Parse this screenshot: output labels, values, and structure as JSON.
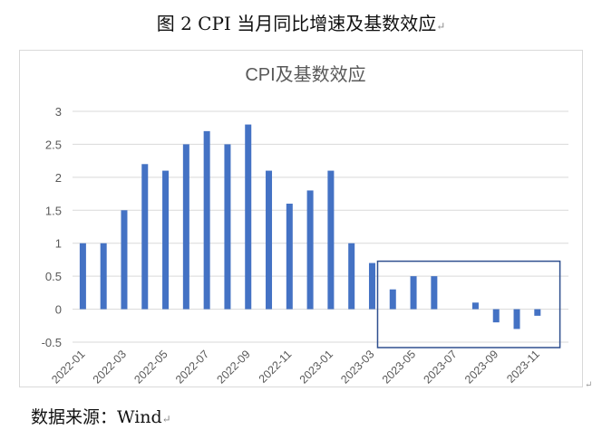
{
  "document": {
    "figure_title": "图 2 CPI 当月同比增速及基数效应",
    "source_note": "数据来源：Wind",
    "paragraph_mark": "↵"
  },
  "colors": {
    "bar": "#4472c4",
    "box": "#2f4f8f",
    "grid": "#d9d9d9",
    "axis_text": "#595959",
    "chart_title": "#595959"
  },
  "chart_data": {
    "type": "bar",
    "title": "CPI及基数效应",
    "xlabel": "",
    "ylabel": "",
    "ylim": [
      -0.5,
      3
    ],
    "yticks": [
      -0.5,
      0,
      0.5,
      1,
      1.5,
      2,
      2.5,
      3
    ],
    "grid": true,
    "legend": "none",
    "categories": [
      "2022-01",
      "2022-02",
      "2022-03",
      "2022-04",
      "2022-05",
      "2022-06",
      "2022-07",
      "2022-08",
      "2022-09",
      "2022-10",
      "2022-11",
      "2022-12",
      "2023-01",
      "2023-02",
      "2023-03",
      "2023-04",
      "2023-05",
      "2023-06",
      "2023-07",
      "2023-08",
      "2023-09",
      "2023-10",
      "2023-11",
      "2023-12"
    ],
    "x_tick_labels": [
      "2022-01",
      "2022-03",
      "2022-05",
      "2022-07",
      "2022-09",
      "2022-11",
      "2023-01",
      "2023-03",
      "2023-05",
      "2023-07",
      "2023-09",
      "2023-11"
    ],
    "values": [
      1.0,
      1.0,
      1.5,
      2.2,
      2.1,
      2.5,
      2.7,
      2.5,
      2.8,
      2.1,
      1.6,
      1.8,
      2.1,
      1.0,
      0.7,
      0.3,
      0.5,
      0.5,
      0.0,
      0.1,
      -0.2,
      -0.3,
      -0.1,
      null
    ],
    "highlight_range": [
      "2023-03",
      "2023-12"
    ]
  }
}
